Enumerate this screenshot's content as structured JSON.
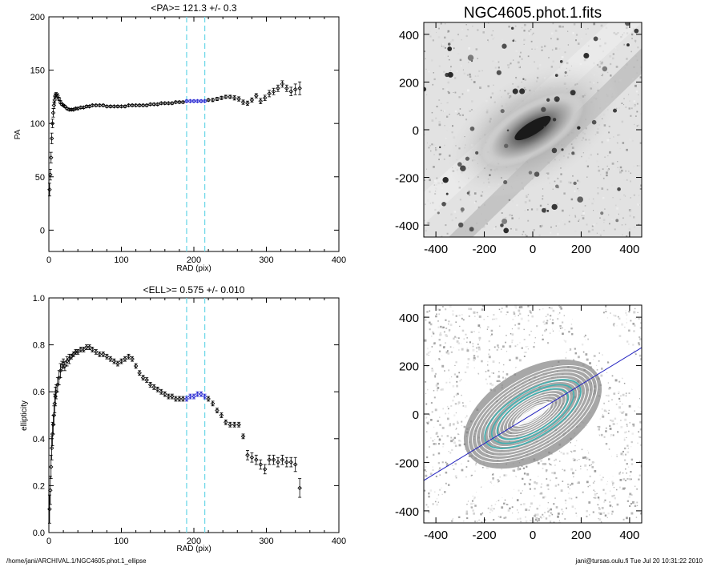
{
  "footer": {
    "path": "/home/jani/ARCHIVAL.1/NGC4605.phot.1_ellipse",
    "stamp": "jani@tursas.oulu.fi  Tue Jul 20 10:31:22 2010"
  },
  "images": {
    "top_title": "NGC4605.phot.1.fits",
    "tick_labels": [
      "-400",
      "-200",
      "0",
      "200",
      "400"
    ],
    "ticks": [
      -400,
      -200,
      0,
      200,
      400
    ],
    "range": [
      -450,
      450
    ],
    "ellipse_color": "#40b0b0",
    "line_color": "#2020c0",
    "line_angle_deg": 31.3
  },
  "chart_data": [
    {
      "type": "scatter",
      "title": "<PA>= 121.3 +/-   0.3",
      "xlabel": "RAD (pix)",
      "ylabel": "PA",
      "xlim": [
        0,
        400
      ],
      "ylim": [
        -20,
        200
      ],
      "xticks": [
        0,
        100,
        200,
        300,
        400
      ],
      "yticks": [
        0,
        50,
        100,
        150,
        200
      ],
      "vlines": [
        190,
        215
      ],
      "highlight_range": [
        190,
        215
      ],
      "highlight_color": "#2020d0",
      "vline_color": "#70d8e8",
      "x": [
        1,
        2,
        3,
        4,
        5,
        6,
        7,
        8,
        9,
        10,
        12,
        14,
        16,
        18,
        20,
        22,
        25,
        28,
        31,
        34,
        37,
        40,
        44,
        48,
        52,
        56,
        60,
        65,
        70,
        75,
        80,
        85,
        90,
        95,
        100,
        105,
        110,
        115,
        120,
        125,
        130,
        135,
        140,
        145,
        150,
        155,
        160,
        165,
        170,
        175,
        180,
        185,
        190,
        195,
        200,
        205,
        210,
        215,
        220,
        226,
        232,
        238,
        244,
        250,
        256,
        262,
        268,
        274,
        280,
        286,
        292,
        298,
        304,
        310,
        316,
        322,
        328,
        334,
        340,
        346
      ],
      "y": [
        38,
        52,
        68,
        86,
        100,
        110,
        117,
        122,
        126,
        127,
        126,
        123,
        120,
        118,
        117,
        116,
        114,
        113,
        113,
        113,
        114,
        114,
        115,
        115,
        116,
        116,
        117,
        117,
        117,
        117,
        116,
        116,
        116,
        116,
        116,
        116,
        117,
        117,
        117,
        117,
        117,
        117,
        118,
        118,
        118,
        119,
        119,
        119,
        119,
        120,
        120,
        120,
        121,
        121,
        121,
        121,
        121,
        121,
        122,
        122,
        123,
        124,
        125,
        125,
        124,
        123,
        120,
        119,
        122,
        126,
        121,
        124,
        128,
        130,
        133,
        137,
        133,
        130,
        132,
        133
      ],
      "err": [
        6,
        5,
        5,
        5,
        4,
        4,
        3,
        3,
        2,
        2,
        2,
        1.5,
        1.5,
        1,
        1,
        1,
        1,
        1,
        1,
        1,
        1,
        1,
        1,
        1,
        1,
        1,
        1,
        1,
        1,
        1,
        1,
        1,
        1,
        1,
        1,
        1,
        1,
        1,
        1,
        1,
        1,
        1,
        1,
        1,
        1,
        1,
        1,
        1,
        1,
        1,
        1,
        1,
        1,
        1,
        1,
        1,
        1,
        1,
        1,
        1.5,
        1.5,
        1.5,
        1.5,
        1.5,
        2,
        2,
        2,
        2,
        2,
        2,
        2.5,
        2.5,
        3,
        3,
        3,
        3,
        3,
        4,
        5,
        6
      ]
    },
    {
      "type": "scatter",
      "title": "<ELL>= 0.575 +/-  0.010",
      "xlabel": "RAD (pix)",
      "ylabel": "ellipticity",
      "xlim": [
        0,
        400
      ],
      "ylim": [
        0,
        1
      ],
      "xticks": [
        0,
        100,
        200,
        300,
        400
      ],
      "yticks": [
        0,
        0.2,
        0.4,
        0.6,
        0.8,
        1
      ],
      "ytick_labels": [
        "0.0",
        "0.2",
        "0.4",
        "0.6",
        "0.8",
        "1.0"
      ],
      "vlines": [
        190,
        215
      ],
      "highlight_range": [
        190,
        215
      ],
      "highlight_color": "#2020d0",
      "vline_color": "#70d8e8",
      "x": [
        1,
        2,
        3,
        4,
        5,
        6,
        7,
        8,
        9,
        10,
        12,
        14,
        16,
        18,
        20,
        22,
        25,
        28,
        31,
        34,
        37,
        40,
        44,
        48,
        52,
        56,
        60,
        65,
        70,
        75,
        80,
        85,
        90,
        95,
        100,
        105,
        110,
        115,
        120,
        125,
        130,
        135,
        140,
        145,
        150,
        155,
        160,
        165,
        170,
        175,
        180,
        185,
        190,
        195,
        200,
        205,
        210,
        215,
        220,
        226,
        232,
        238,
        244,
        250,
        256,
        262,
        268,
        274,
        280,
        286,
        292,
        298,
        304,
        310,
        316,
        322,
        328,
        334,
        340,
        346
      ],
      "y": [
        0.1,
        0.18,
        0.28,
        0.36,
        0.42,
        0.46,
        0.5,
        0.55,
        0.58,
        0.6,
        0.63,
        0.66,
        0.69,
        0.71,
        0.72,
        0.71,
        0.73,
        0.74,
        0.75,
        0.76,
        0.77,
        0.77,
        0.78,
        0.78,
        0.79,
        0.79,
        0.78,
        0.77,
        0.76,
        0.76,
        0.75,
        0.74,
        0.73,
        0.72,
        0.73,
        0.74,
        0.75,
        0.74,
        0.71,
        0.68,
        0.66,
        0.65,
        0.63,
        0.62,
        0.61,
        0.6,
        0.59,
        0.58,
        0.58,
        0.57,
        0.57,
        0.57,
        0.57,
        0.58,
        0.58,
        0.59,
        0.59,
        0.58,
        0.57,
        0.55,
        0.52,
        0.5,
        0.47,
        0.46,
        0.46,
        0.46,
        0.41,
        0.33,
        0.32,
        0.31,
        0.29,
        0.27,
        0.31,
        0.31,
        0.3,
        0.31,
        0.3,
        0.3,
        0.29,
        0.19
      ],
      "err": [
        0.06,
        0.06,
        0.05,
        0.05,
        0.05,
        0.04,
        0.04,
        0.04,
        0.04,
        0.03,
        0.03,
        0.03,
        0.03,
        0.02,
        0.02,
        0.02,
        0.02,
        0.02,
        0.01,
        0.01,
        0.01,
        0.01,
        0.01,
        0.01,
        0.01,
        0.01,
        0.01,
        0.01,
        0.01,
        0.01,
        0.01,
        0.01,
        0.01,
        0.01,
        0.01,
        0.01,
        0.01,
        0.01,
        0.01,
        0.01,
        0.01,
        0.01,
        0.01,
        0.01,
        0.01,
        0.01,
        0.01,
        0.01,
        0.01,
        0.01,
        0.01,
        0.01,
        0.01,
        0.01,
        0.01,
        0.01,
        0.01,
        0.01,
        0.01,
        0.01,
        0.01,
        0.01,
        0.01,
        0.01,
        0.01,
        0.01,
        0.01,
        0.02,
        0.02,
        0.02,
        0.02,
        0.02,
        0.02,
        0.02,
        0.02,
        0.02,
        0.02,
        0.02,
        0.03,
        0.04
      ]
    }
  ]
}
